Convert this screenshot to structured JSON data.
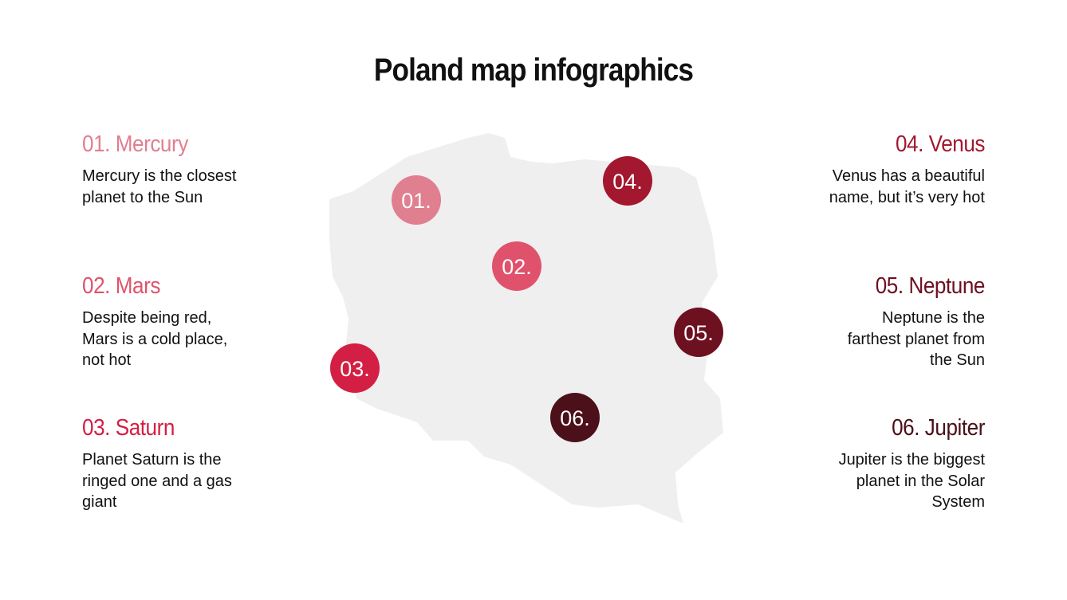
{
  "title": "Poland map infographics",
  "items": [
    {
      "number": "01.",
      "heading": "01. Mercury",
      "text": "Mercury is the closest planet to the Sun",
      "color": "#e07f8f"
    },
    {
      "number": "02.",
      "heading": "02. Mars",
      "text": "Despite being red, Mars is a cold place, not hot",
      "color": "#e0526b"
    },
    {
      "number": "03.",
      "heading": "03. Saturn",
      "text": "Planet Saturn is the ringed one and a gas giant",
      "color": "#d31f44"
    },
    {
      "number": "04.",
      "heading": "04. Venus",
      "text": "Venus has a beautiful name, but it’s very hot",
      "color": "#a3172f"
    },
    {
      "number": "05.",
      "heading": "05. Neptune",
      "text": "Neptune is the farthest planet from the Sun",
      "color": "#6d1020"
    },
    {
      "number": "06.",
      "heading": "06. Jupiter",
      "text": "Jupiter is the biggest planet in the Solar System",
      "color": "#4b1019"
    }
  ],
  "map": {
    "fill": "#efefef"
  }
}
